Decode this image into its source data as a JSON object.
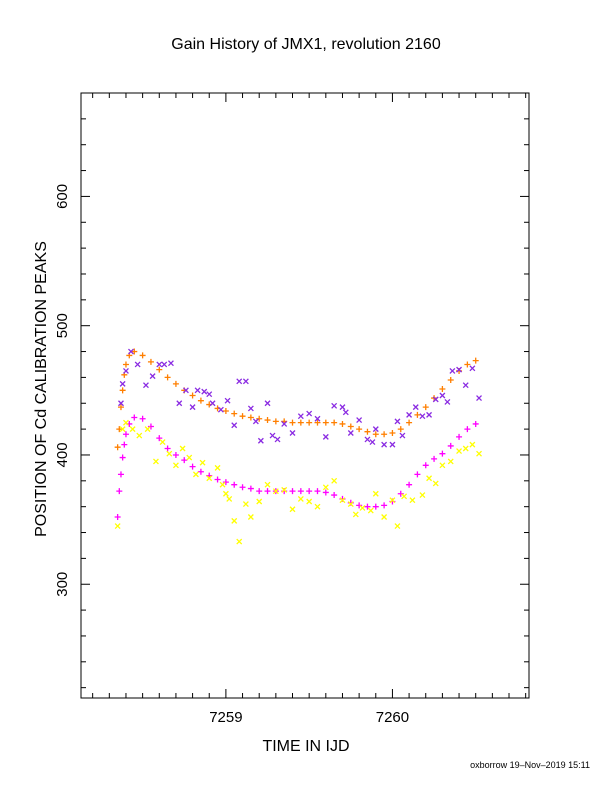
{
  "chart_data": {
    "type": "scatter",
    "title": "Gain History of JMX1, revolution 2160",
    "xlabel": "TIME IN IJD",
    "ylabel": "POSITION OF Cd CALIBRATION PEAKS",
    "xlim": [
      7258.13,
      7260.82
    ],
    "ylim": [
      212,
      680
    ],
    "x_ticks": [
      7259,
      7260
    ],
    "y_ticks": [
      300,
      400,
      500,
      600
    ],
    "series": [
      {
        "color": "#ff7f00",
        "marker": "plus",
        "points": [
          [
            7258.35,
            406
          ],
          [
            7258.36,
            420
          ],
          [
            7258.37,
            437
          ],
          [
            7258.38,
            450
          ],
          [
            7258.39,
            462
          ],
          [
            7258.4,
            470
          ],
          [
            7258.42,
            477
          ],
          [
            7258.45,
            480
          ],
          [
            7258.5,
            477
          ],
          [
            7258.55,
            472
          ],
          [
            7258.6,
            466
          ],
          [
            7258.65,
            460
          ],
          [
            7258.7,
            455
          ],
          [
            7258.75,
            450
          ],
          [
            7258.8,
            446
          ],
          [
            7258.85,
            442
          ],
          [
            7258.9,
            439
          ],
          [
            7258.95,
            436
          ],
          [
            7259.0,
            434
          ],
          [
            7259.05,
            432
          ],
          [
            7259.1,
            430
          ],
          [
            7259.15,
            429
          ],
          [
            7259.2,
            428
          ],
          [
            7259.25,
            427
          ],
          [
            7259.3,
            426
          ],
          [
            7259.35,
            426
          ],
          [
            7259.4,
            425
          ],
          [
            7259.45,
            425
          ],
          [
            7259.5,
            425
          ],
          [
            7259.55,
            425
          ],
          [
            7259.6,
            425
          ],
          [
            7259.65,
            425
          ],
          [
            7259.7,
            424
          ],
          [
            7259.75,
            422
          ],
          [
            7259.8,
            420
          ],
          [
            7259.85,
            418
          ],
          [
            7259.9,
            416
          ],
          [
            7259.95,
            416
          ],
          [
            7260.0,
            417
          ],
          [
            7260.05,
            420
          ],
          [
            7260.1,
            425
          ],
          [
            7260.15,
            431
          ],
          [
            7260.2,
            437
          ],
          [
            7260.25,
            444
          ],
          [
            7260.3,
            451
          ],
          [
            7260.35,
            458
          ],
          [
            7260.4,
            465
          ],
          [
            7260.45,
            470
          ],
          [
            7260.5,
            473
          ]
        ]
      },
      {
        "color": "#ff00ff",
        "marker": "plus",
        "points": [
          [
            7258.35,
            352
          ],
          [
            7258.36,
            372
          ],
          [
            7258.37,
            385
          ],
          [
            7258.38,
            398
          ],
          [
            7258.39,
            408
          ],
          [
            7258.4,
            416
          ],
          [
            7258.42,
            424
          ],
          [
            7258.45,
            429
          ],
          [
            7258.5,
            428
          ],
          [
            7258.55,
            422
          ],
          [
            7258.6,
            413
          ],
          [
            7258.65,
            405
          ],
          [
            7258.7,
            400
          ],
          [
            7258.75,
            396
          ],
          [
            7258.8,
            391
          ],
          [
            7258.85,
            387
          ],
          [
            7258.9,
            384
          ],
          [
            7258.95,
            381
          ],
          [
            7259.0,
            379
          ],
          [
            7259.05,
            377
          ],
          [
            7259.1,
            375
          ],
          [
            7259.15,
            374
          ],
          [
            7259.2,
            372
          ],
          [
            7259.25,
            372
          ],
          [
            7259.3,
            372
          ],
          [
            7259.35,
            372
          ],
          [
            7259.4,
            372
          ],
          [
            7259.45,
            372
          ],
          [
            7259.5,
            372
          ],
          [
            7259.55,
            372
          ],
          [
            7259.6,
            371
          ],
          [
            7259.65,
            369
          ],
          [
            7259.7,
            366
          ],
          [
            7259.75,
            363
          ],
          [
            7259.8,
            361
          ],
          [
            7259.85,
            360
          ],
          [
            7259.9,
            360
          ],
          [
            7259.95,
            361
          ],
          [
            7260.0,
            364
          ],
          [
            7260.05,
            370
          ],
          [
            7260.1,
            377
          ],
          [
            7260.15,
            385
          ],
          [
            7260.2,
            392
          ],
          [
            7260.25,
            397
          ],
          [
            7260.3,
            401
          ],
          [
            7260.35,
            407
          ],
          [
            7260.4,
            414
          ],
          [
            7260.45,
            420
          ],
          [
            7260.5,
            424
          ]
        ]
      },
      {
        "color": "#8a2be2",
        "marker": "cross",
        "points": [
          [
            7258.37,
            440
          ],
          [
            7258.38,
            455
          ],
          [
            7258.4,
            465
          ],
          [
            7258.43,
            480
          ],
          [
            7258.47,
            470
          ],
          [
            7258.52,
            454
          ],
          [
            7258.56,
            461
          ],
          [
            7258.6,
            470
          ],
          [
            7258.63,
            470
          ],
          [
            7258.67,
            471
          ],
          [
            7258.72,
            440
          ],
          [
            7258.76,
            450
          ],
          [
            7258.8,
            437
          ],
          [
            7258.83,
            450
          ],
          [
            7258.87,
            449
          ],
          [
            7258.9,
            447
          ],
          [
            7258.92,
            440
          ],
          [
            7258.97,
            435
          ],
          [
            7259.01,
            442
          ],
          [
            7259.05,
            423
          ],
          [
            7259.08,
            457
          ],
          [
            7259.12,
            457
          ],
          [
            7259.15,
            436
          ],
          [
            7259.18,
            426
          ],
          [
            7259.21,
            411
          ],
          [
            7259.25,
            440
          ],
          [
            7259.28,
            415
          ],
          [
            7259.31,
            412
          ],
          [
            7259.35,
            424
          ],
          [
            7259.4,
            417
          ],
          [
            7259.45,
            430
          ],
          [
            7259.5,
            432
          ],
          [
            7259.55,
            428
          ],
          [
            7259.6,
            414
          ],
          [
            7259.65,
            438
          ],
          [
            7259.7,
            437
          ],
          [
            7259.72,
            433
          ],
          [
            7259.75,
            417
          ],
          [
            7259.8,
            427
          ],
          [
            7259.85,
            412
          ],
          [
            7259.88,
            410
          ],
          [
            7259.9,
            420
          ],
          [
            7259.95,
            408
          ],
          [
            7260.0,
            408
          ],
          [
            7260.03,
            426
          ],
          [
            7260.06,
            415
          ],
          [
            7260.1,
            431
          ],
          [
            7260.14,
            437
          ],
          [
            7260.18,
            430
          ],
          [
            7260.22,
            431
          ],
          [
            7260.26,
            443
          ],
          [
            7260.3,
            446
          ],
          [
            7260.33,
            441
          ],
          [
            7260.36,
            465
          ],
          [
            7260.4,
            466
          ],
          [
            7260.44,
            454
          ],
          [
            7260.48,
            467
          ],
          [
            7260.52,
            444
          ]
        ]
      },
      {
        "color": "#ffff00",
        "marker": "cross",
        "points": [
          [
            7258.35,
            345
          ],
          [
            7258.38,
            420
          ],
          [
            7258.4,
            425
          ],
          [
            7258.44,
            420
          ],
          [
            7258.48,
            415
          ],
          [
            7258.53,
            420
          ],
          [
            7258.58,
            395
          ],
          [
            7258.62,
            410
          ],
          [
            7258.66,
            401
          ],
          [
            7258.7,
            392
          ],
          [
            7258.74,
            405
          ],
          [
            7258.78,
            398
          ],
          [
            7258.82,
            385
          ],
          [
            7258.86,
            394
          ],
          [
            7258.9,
            382
          ],
          [
            7258.95,
            390
          ],
          [
            7258.98,
            377
          ],
          [
            7259.0,
            370
          ],
          [
            7259.02,
            366
          ],
          [
            7259.05,
            349
          ],
          [
            7259.08,
            333
          ],
          [
            7259.12,
            362
          ],
          [
            7259.15,
            352
          ],
          [
            7259.2,
            364
          ],
          [
            7259.25,
            377
          ],
          [
            7259.3,
            372
          ],
          [
            7259.35,
            373
          ],
          [
            7259.4,
            358
          ],
          [
            7259.45,
            366
          ],
          [
            7259.5,
            364
          ],
          [
            7259.55,
            360
          ],
          [
            7259.6,
            375
          ],
          [
            7259.65,
            380
          ],
          [
            7259.7,
            365
          ],
          [
            7259.75,
            362
          ],
          [
            7259.78,
            354
          ],
          [
            7259.82,
            359
          ],
          [
            7259.87,
            357
          ],
          [
            7259.9,
            370
          ],
          [
            7259.95,
            352
          ],
          [
            7260.0,
            365
          ],
          [
            7260.03,
            345
          ],
          [
            7260.07,
            368
          ],
          [
            7260.12,
            365
          ],
          [
            7260.18,
            369
          ],
          [
            7260.22,
            382
          ],
          [
            7260.26,
            378
          ],
          [
            7260.3,
            392
          ],
          [
            7260.35,
            395
          ],
          [
            7260.4,
            403
          ],
          [
            7260.44,
            405
          ],
          [
            7260.48,
            408
          ],
          [
            7260.52,
            401
          ]
        ]
      }
    ]
  },
  "footer": {
    "credit": "oxborrow 19–Nov–2019 15:11"
  }
}
